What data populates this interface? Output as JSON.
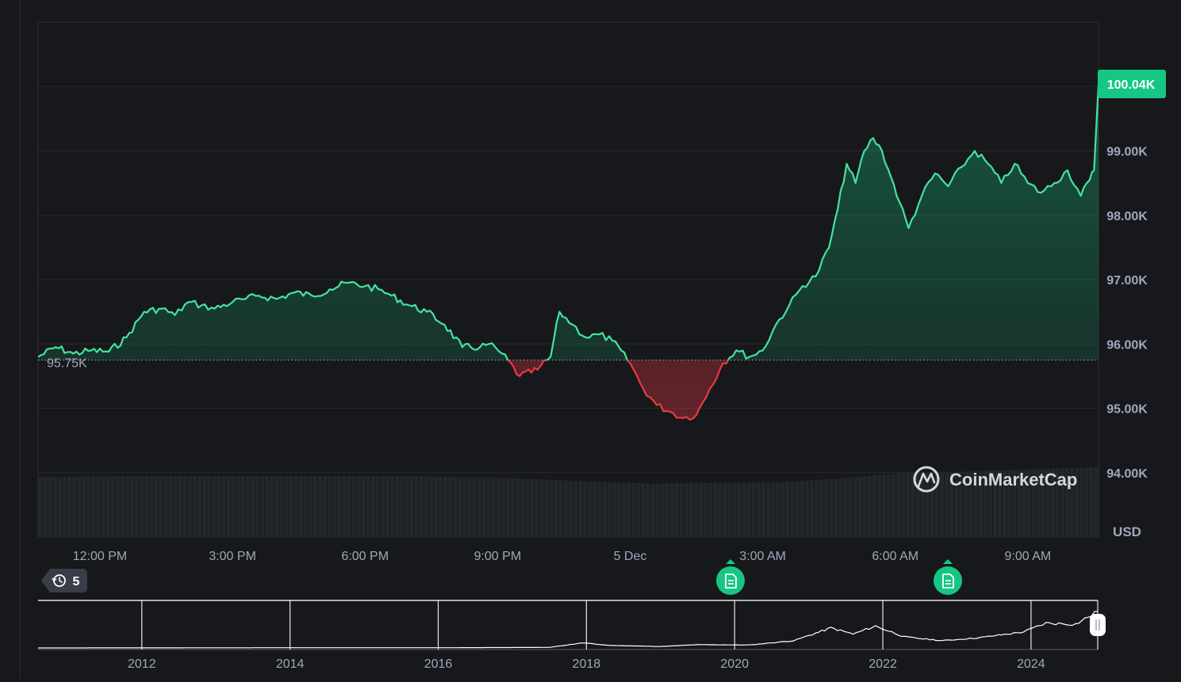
{
  "chart_data": {
    "type": "area",
    "currency": "USD",
    "baseline": 95750,
    "baseline_label": "95.75K",
    "current_label": "100.04K",
    "ylim": [
      93000,
      101000
    ],
    "y_ticks": [
      {
        "value": 94000,
        "label": "94.00K"
      },
      {
        "value": 95000,
        "label": "95.00K"
      },
      {
        "value": 96000,
        "label": "96.00K"
      },
      {
        "value": 97000,
        "label": "97.00K"
      },
      {
        "value": 98000,
        "label": "98.00K"
      },
      {
        "value": 99000,
        "label": "99.00K"
      }
    ],
    "x_ticks": [
      {
        "hour": 12,
        "label": "12:00 PM"
      },
      {
        "hour": 15,
        "label": "3:00 PM"
      },
      {
        "hour": 18,
        "label": "6:00 PM"
      },
      {
        "hour": 21,
        "label": "9:00 PM"
      },
      {
        "hour": 24,
        "label": "5 Dec"
      },
      {
        "hour": 27,
        "label": "3:00 AM"
      },
      {
        "hour": 30,
        "label": "6:00 AM"
      },
      {
        "hour": 33,
        "label": "9:00 AM"
      }
    ],
    "xlim_hours": [
      10.6,
      34.6
    ],
    "series": [
      {
        "x_hours": [
          10.6,
          11.0,
          11.4,
          11.8,
          12.2,
          12.6,
          13.0,
          13.4,
          13.7,
          14.0,
          14.3,
          14.6,
          15.0,
          15.3,
          15.6,
          16.0,
          16.4,
          16.8,
          17.2,
          17.6,
          18.0,
          18.3,
          18.6,
          19.0,
          19.4,
          19.8,
          20.2,
          20.6,
          20.8,
          21.1,
          21.5,
          21.9,
          22.2,
          22.4,
          22.7,
          23.0,
          23.3,
          23.6,
          24.0,
          24.3,
          24.6,
          24.9,
          25.2,
          25.5,
          25.8,
          26.1,
          26.4,
          26.7,
          27.0,
          27.3,
          27.6,
          27.9,
          28.2,
          28.5,
          28.7,
          28.9,
          29.1,
          29.3,
          29.5,
          29.7,
          29.9,
          30.1,
          30.3,
          30.6,
          30.9,
          31.2,
          31.5,
          31.8,
          32.1,
          32.4,
          32.7,
          33.0,
          33.3,
          33.6,
          33.9,
          34.2,
          34.4,
          34.5,
          34.6
        ],
        "y": [
          95800,
          95950,
          95850,
          95900,
          95880,
          96100,
          96500,
          96550,
          96450,
          96650,
          96600,
          96550,
          96650,
          96700,
          96750,
          96700,
          96800,
          96750,
          96850,
          96950,
          96900,
          96850,
          96750,
          96600,
          96500,
          96300,
          95950,
          95950,
          96000,
          95850,
          95500,
          95600,
          95800,
          96500,
          96300,
          96100,
          96150,
          96050,
          95700,
          95300,
          95050,
          94950,
          94850,
          94900,
          95300,
          95700,
          95900,
          95800,
          95900,
          96300,
          96600,
          96900,
          97050,
          97500,
          98100,
          98800,
          98500,
          99000,
          99200,
          99000,
          98600,
          98200,
          97800,
          98300,
          98650,
          98450,
          98750,
          99000,
          98800,
          98500,
          98800,
          98500,
          98350,
          98500,
          98700,
          98300,
          98550,
          98700,
          100040
        ]
      }
    ],
    "volume": {
      "x_hours": [
        10.6,
        13,
        16,
        19,
        21,
        23,
        24.5,
        26,
        27.5,
        28.5,
        30,
        32,
        34.6
      ],
      "relative": [
        0.8,
        0.81,
        0.81,
        0.81,
        0.79,
        0.74,
        0.71,
        0.72,
        0.73,
        0.77,
        0.84,
        0.88,
        0.93
      ]
    },
    "navigator": {
      "x_ticks": [
        "2012",
        "2014",
        "2016",
        "2018",
        "2020",
        "2022",
        "2024"
      ],
      "year_range": [
        2010.6,
        2024.9
      ],
      "points": [
        [
          2010.6,
          0
        ],
        [
          2013.0,
          0.4
        ],
        [
          2014.0,
          0.7
        ],
        [
          2016.0,
          0.6
        ],
        [
          2017.5,
          1.5
        ],
        [
          2017.95,
          14
        ],
        [
          2018.3,
          7
        ],
        [
          2019.0,
          4
        ],
        [
          2019.5,
          9
        ],
        [
          2020.2,
          8
        ],
        [
          2020.8,
          20
        ],
        [
          2021.3,
          55
        ],
        [
          2021.6,
          38
        ],
        [
          2021.9,
          60
        ],
        [
          2022.3,
          30
        ],
        [
          2022.8,
          20
        ],
        [
          2023.3,
          28
        ],
        [
          2023.9,
          44
        ],
        [
          2024.2,
          68
        ],
        [
          2024.6,
          65
        ],
        [
          2024.9,
          100
        ]
      ]
    }
  },
  "brand": {
    "name": "CoinMarketCap"
  },
  "history_badge": {
    "count": "5"
  },
  "colors": {
    "up": "#44e3a0",
    "down": "#ea3943",
    "badge": "#16c784"
  },
  "icons": {
    "history": "history-icon",
    "news": "document-icon",
    "handle": "range-handle"
  }
}
